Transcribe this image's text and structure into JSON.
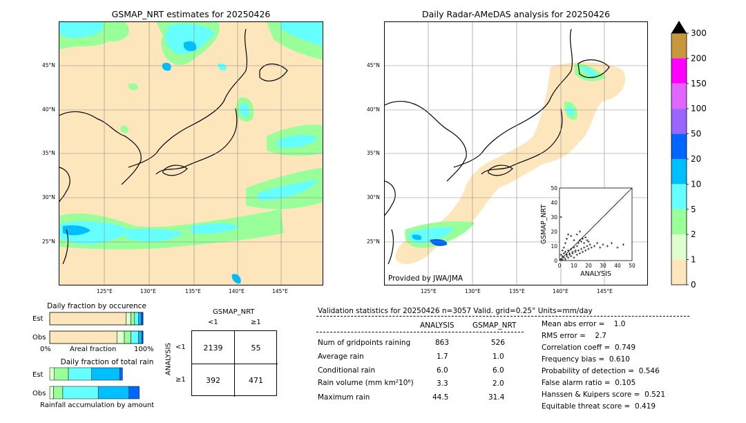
{
  "left_map": {
    "title": "GSMAP_NRT estimates for 20250426",
    "lon_ticks": [
      "125°E",
      "130°E",
      "135°E",
      "140°E",
      "145°E"
    ],
    "lat_ticks": [
      "45°N",
      "40°N",
      "35°N",
      "30°N",
      "25°N"
    ]
  },
  "right_map": {
    "title": "Daily Radar-AMeDAS analysis for 20250426",
    "lon_ticks": [
      "125°E",
      "130°E",
      "135°E",
      "140°E",
      "145°E"
    ],
    "lat_ticks": [
      "45°N",
      "40°N",
      "35°N",
      "30°N",
      "25°N"
    ],
    "credit": "Provided by JWA/JMA"
  },
  "colorbar": {
    "labels": [
      "300",
      "200",
      "150",
      "100",
      "50",
      "20",
      "10",
      "5",
      "2",
      "1",
      "0"
    ],
    "colors": [
      "#c8963c",
      "#ff00ff",
      "#e066ff",
      "#9966ff",
      "#0066ff",
      "#00bfff",
      "#66ffff",
      "#99ff99",
      "#e0ffd0",
      "#fde6bb"
    ]
  },
  "chart_data": [
    {
      "type": "scatter",
      "xlabel": "ANALYSIS",
      "ylabel": "GSMAP_NRT",
      "xlim": [
        0,
        50
      ],
      "ylim": [
        0,
        50
      ],
      "xticks": [
        "0",
        "10",
        "20",
        "30",
        "40",
        "50"
      ],
      "yticks": [
        "0",
        "10",
        "20",
        "30",
        "40",
        "50"
      ],
      "points": [
        [
          1,
          1
        ],
        [
          2,
          0.5
        ],
        [
          3,
          2
        ],
        [
          4,
          1
        ],
        [
          5,
          3
        ],
        [
          6,
          2
        ],
        [
          7,
          4
        ],
        [
          8,
          3
        ],
        [
          9,
          5
        ],
        [
          10,
          2
        ],
        [
          11,
          6
        ],
        [
          12,
          4
        ],
        [
          13,
          7
        ],
        [
          14,
          5
        ],
        [
          15,
          8
        ],
        [
          16,
          6
        ],
        [
          17,
          9
        ],
        [
          18,
          7
        ],
        [
          19,
          10
        ],
        [
          20,
          8
        ],
        [
          21,
          11
        ],
        [
          22,
          9
        ],
        [
          24,
          10
        ],
        [
          26,
          12
        ],
        [
          28,
          9
        ],
        [
          30,
          11
        ],
        [
          33,
          10
        ],
        [
          36,
          12
        ],
        [
          40,
          9
        ],
        [
          44,
          11
        ],
        [
          2,
          3
        ],
        [
          3,
          5
        ],
        [
          4,
          6
        ],
        [
          5,
          4
        ],
        [
          6,
          7
        ],
        [
          7,
          5
        ],
        [
          8,
          8
        ],
        [
          9,
          6
        ],
        [
          10,
          9
        ],
        [
          11,
          7
        ],
        [
          12,
          10
        ],
        [
          13,
          12
        ],
        [
          14,
          14
        ],
        [
          15,
          13
        ],
        [
          16,
          15
        ],
        [
          17,
          12
        ],
        [
          18,
          16
        ],
        [
          19,
          14
        ],
        [
          20,
          13
        ],
        [
          1,
          4
        ],
        [
          2,
          7
        ],
        [
          3,
          9
        ],
        [
          4,
          12
        ],
        [
          5,
          15
        ],
        [
          1,
          30
        ],
        [
          6,
          18
        ],
        [
          8,
          17
        ],
        [
          10,
          14
        ],
        [
          12,
          18
        ],
        [
          14,
          20
        ]
      ]
    },
    {
      "type": "bar",
      "title": "Daily fraction by occurence",
      "categories": [
        "Est",
        "Obs"
      ],
      "xlabel": "Areal fraction",
      "xtick_left": "0%",
      "xtick_right": "100%",
      "series": [
        {
          "color": "#fde6bb",
          "values": [
            0.82,
            0.72
          ]
        },
        {
          "color": "#e0ffd0",
          "values": [
            0.05,
            0.08
          ]
        },
        {
          "color": "#99ff99",
          "values": [
            0.04,
            0.07
          ]
        },
        {
          "color": "#66ffff",
          "values": [
            0.04,
            0.08
          ]
        },
        {
          "color": "#00bfff",
          "values": [
            0.03,
            0.04
          ]
        },
        {
          "color": "#0066ff",
          "values": [
            0.02,
            0.01
          ]
        }
      ]
    },
    {
      "type": "bar",
      "title": "Daily fraction of total rain",
      "categories": [
        "Est",
        "Obs"
      ],
      "xlabel": "Rainfall accumulation by amount",
      "series": [
        {
          "color": "#e0ffd0",
          "values": [
            0.05,
            0.04
          ]
        },
        {
          "color": "#99ff99",
          "values": [
            0.15,
            0.1
          ]
        },
        {
          "color": "#66ffff",
          "values": [
            0.25,
            0.38
          ]
        },
        {
          "color": "#00bfff",
          "values": [
            0.3,
            0.33
          ]
        },
        {
          "color": "#0066ff",
          "values": [
            0.03,
            0.11
          ]
        }
      ]
    }
  ],
  "contingency": {
    "title": "GSMAP_NRT",
    "col_lt": "<1",
    "col_ge": "≥1",
    "row_label": "ANALYSIS",
    "row_lt": "<1",
    "row_ge": "≥1",
    "c11": "2139",
    "c12": "55",
    "c21": "392",
    "c22": "471"
  },
  "validation": {
    "header": "Validation statistics for 20250426  n=3057 Valid. grid=0.25° Units=mm/day",
    "col_analysis": "ANALYSIS",
    "col_gsmap": "GSMAP_NRT",
    "rows": [
      {
        "label": "Num of gridpoints raining",
        "analysis": "863",
        "gsmap": "526"
      },
      {
        "label": "Average rain",
        "analysis": "1.7",
        "gsmap": "1.0"
      },
      {
        "label": "Conditional rain",
        "analysis": "6.0",
        "gsmap": "6.0"
      },
      {
        "label": "Rain volume (mm km²10⁶)",
        "analysis": "3.3",
        "gsmap": "2.0"
      },
      {
        "label": "Maximum rain",
        "analysis": "44.5",
        "gsmap": "31.4"
      }
    ],
    "scores": [
      "Mean abs error =    1.0",
      "RMS error =    2.7",
      "Correlation coeff =  0.749",
      "Frequency bias =  0.610",
      "Probability of detection =  0.546",
      "False alarm ratio =  0.105",
      "Hanssen & Kuipers score =  0.521",
      "Equitable threat score =  0.419"
    ]
  }
}
